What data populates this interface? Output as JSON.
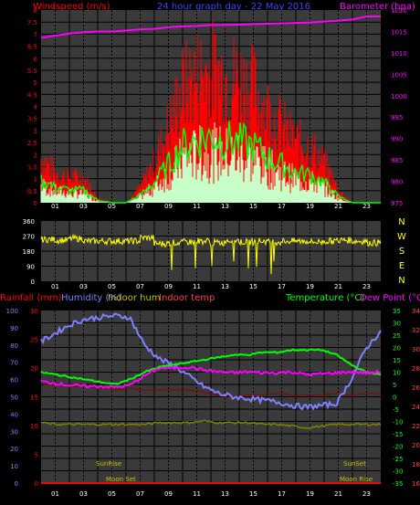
{
  "header": {
    "windspeed_label": "Windspeed (m/s)",
    "title": "24 hour graph day - 22 May 2016",
    "barometer_label": "Barometer (hpa)"
  },
  "bottom_header": {
    "rainfall_label": "Rainfall (mm)",
    "humidity_label": "Humidity (%)",
    "indoor_hum_label": "Indoor hum",
    "indoor_temp_label": "Indoor temp",
    "temperature_label": "Temperature (°C)",
    "dew_point_label": "Dew Point (°C)"
  },
  "colors": {
    "wind": "#ff0000",
    "gust_avg": "#00ff00",
    "wind_light": "#c8ffc8",
    "barometer": "#ff00ff",
    "direction": "#ffff00",
    "humidity": "#7f7fff",
    "indoor_hum": "#808000",
    "indoor_temp": "#8b0000",
    "temperature": "#00ff00",
    "dewpoint": "#ff00ff",
    "rain": "#ff0000",
    "panel_bg": "#3a3a3a",
    "grid": "#000000"
  },
  "chart_data": [
    {
      "type": "line",
      "title": "24 hour graph day - 22 May 2016",
      "ylabel": "Windspeed (m/s)",
      "y2label": "Barometer (hpa)",
      "ylim": [
        0,
        8
      ],
      "y2lim": [
        975,
        1020
      ],
      "yticks": [
        "0",
        "0.5",
        "1",
        "1.5",
        "2",
        "2.5",
        "3",
        "3.5",
        "4",
        "4.5",
        "5",
        "5.5",
        "6",
        "6.5",
        "7",
        "7.5",
        "8"
      ],
      "y2ticks": [
        "975",
        "980",
        "985",
        "990",
        "995",
        "1000",
        "1005",
        "1010",
        "1015",
        "1020"
      ],
      "x_hours": [
        0,
        1,
        2,
        3,
        4,
        5,
        6,
        7,
        8,
        9,
        10,
        11,
        12,
        13,
        14,
        15,
        16,
        17,
        18,
        19,
        20,
        21,
        22,
        23
      ],
      "series": [
        {
          "name": "Windspeed",
          "values": [
            1.8,
            1.2,
            1.0,
            1.0,
            0.2,
            0.0,
            0.0,
            0.6,
            1.6,
            3.0,
            4.5,
            5.0,
            5.2,
            5.0,
            4.8,
            4.5,
            3.6,
            3.0,
            2.4,
            2.2,
            1.6,
            0.5,
            0.0,
            0.0
          ]
        },
        {
          "name": "Barometer",
          "values": [
            1013.5,
            1014.0,
            1014.5,
            1014.8,
            1015.0,
            1015.0,
            1015.2,
            1015.5,
            1015.6,
            1016.0,
            1016.2,
            1016.3,
            1016.5,
            1016.5,
            1016.6,
            1016.7,
            1016.8,
            1016.9,
            1017.0,
            1017.1,
            1017.3,
            1017.5,
            1017.8,
            1018.5
          ]
        }
      ]
    },
    {
      "type": "line",
      "ylabel": "Wind direction",
      "ylim": [
        0,
        360
      ],
      "yticks": [
        "0",
        "90",
        "180",
        "270",
        "360"
      ],
      "compass_labels": [
        "N",
        "W",
        "S",
        "E",
        "N"
      ],
      "x_hours": [
        0,
        1,
        2,
        3,
        4,
        5,
        6,
        7,
        8,
        9,
        10,
        11,
        12,
        13,
        14,
        15,
        16,
        17,
        18,
        19,
        20,
        21,
        22,
        23
      ],
      "series": [
        {
          "name": "Direction",
          "values": [
            250,
            245,
            255,
            240,
            240,
            240,
            240,
            260,
            225,
            230,
            235,
            240,
            230,
            245,
            235,
            240,
            235,
            240,
            240,
            235,
            240,
            245,
            240,
            230
          ]
        }
      ]
    },
    {
      "type": "line",
      "ylim_humidity": [
        0,
        100
      ],
      "ylim_rain": [
        0,
        30
      ],
      "ylim_temp": [
        -35,
        35
      ],
      "ylim_dew": [
        16,
        34
      ],
      "humidity_ticks": [
        "0",
        "10",
        "20",
        "30",
        "40",
        "50",
        "60",
        "70",
        "80",
        "90",
        "100"
      ],
      "rain_ticks": [
        "0",
        "5",
        "10",
        "15",
        "20",
        "25",
        "30"
      ],
      "temp_ticks": [
        "-35",
        "-30",
        "-25",
        "-20",
        "-15",
        "-10",
        "-5",
        "0",
        "5",
        "10",
        "15",
        "20",
        "25",
        "30",
        "35"
      ],
      "dew_ticks": [
        "16",
        "18",
        "20",
        "22",
        "24",
        "26",
        "28",
        "30",
        "32",
        "34"
      ],
      "annotations": [
        "SunRise",
        "Moon Set",
        "SunSet",
        "Moon Rise"
      ],
      "x_hours": [
        0,
        1,
        2,
        3,
        4,
        5,
        6,
        7,
        8,
        9,
        10,
        11,
        12,
        13,
        14,
        15,
        16,
        17,
        18,
        19,
        20,
        21,
        22,
        23
      ],
      "series": [
        {
          "name": "Humidity",
          "values": [
            82,
            87,
            92,
            95,
            96,
            97,
            96,
            80,
            72,
            68,
            62,
            56,
            52,
            50,
            49,
            48,
            47,
            45,
            44,
            45,
            46,
            60,
            78,
            88
          ]
        },
        {
          "name": "Indoor hum",
          "values": [
            35,
            34,
            34,
            34,
            34,
            34,
            34,
            34,
            35,
            35,
            35,
            36,
            35,
            35,
            35,
            34,
            34,
            33,
            32,
            33,
            34,
            34,
            34,
            34
          ]
        },
        {
          "name": "Indoor temp",
          "values": [
            57,
            57,
            56,
            56,
            55,
            54,
            55,
            54,
            54,
            54,
            54,
            53,
            51,
            50,
            51,
            51,
            52,
            51,
            51,
            51,
            52,
            51,
            52,
            52
          ]
        },
        {
          "name": "Temperature",
          "values": [
            10,
            9,
            8,
            7,
            6,
            5,
            7,
            10,
            12,
            13,
            14,
            15,
            16,
            17,
            17,
            18,
            18,
            19,
            19,
            19,
            17,
            13,
            10,
            9
          ]
        },
        {
          "name": "Dew Point",
          "values": [
            26.6,
            26.4,
            26.2,
            26.1,
            26.1,
            26.0,
            26.2,
            27.2,
            28.0,
            28.0,
            28.1,
            27.8,
            27.6,
            27.5,
            27.6,
            27.5,
            27.5,
            27.6,
            27.3,
            27.4,
            27.5,
            27.6,
            27.5,
            27.6
          ]
        },
        {
          "name": "Rainfall",
          "values": [
            0,
            0,
            0,
            0,
            0,
            0,
            0,
            0,
            0,
            0,
            0,
            0,
            0,
            0,
            0,
            0,
            0,
            0,
            0,
            0,
            0,
            0,
            0,
            0
          ]
        }
      ]
    }
  ],
  "x_tick_labels": [
    "01",
    "03",
    "05",
    "07",
    "09",
    "11",
    "13",
    "15",
    "17",
    "19",
    "21",
    "23"
  ]
}
